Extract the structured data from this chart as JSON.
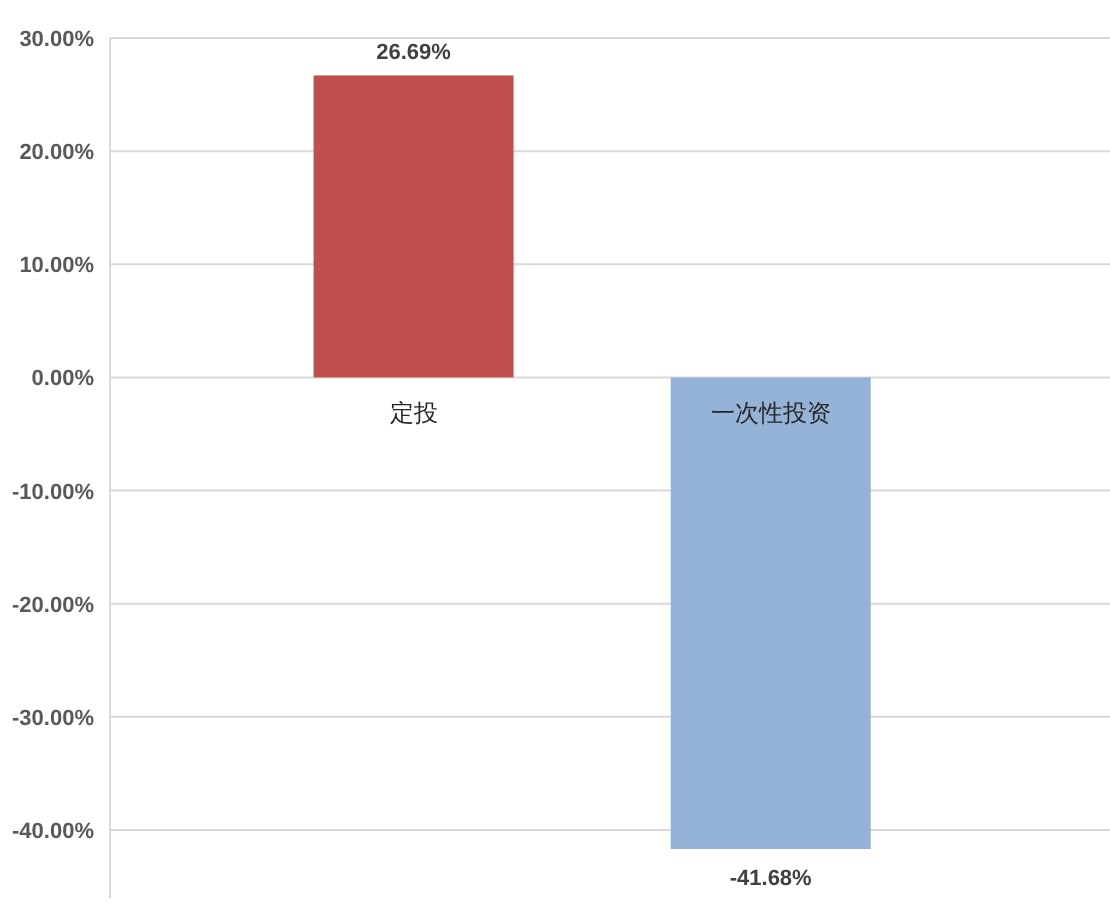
{
  "chart_data": {
    "type": "bar",
    "categories": [
      "定投",
      "一次性投资"
    ],
    "values": [
      26.69,
      -41.68
    ],
    "colors": [
      "#c0504d",
      "#95b3d7"
    ],
    "value_labels": [
      "26.69%",
      "-41.68%"
    ],
    "ylim": [
      -46,
      30
    ],
    "yticks": [
      {
        "value": 30,
        "label": "30.00%"
      },
      {
        "value": 20,
        "label": "20.00%"
      },
      {
        "value": 10,
        "label": "10.00%"
      },
      {
        "value": 0,
        "label": "0.00%"
      },
      {
        "value": -10,
        "label": "-10.00%"
      },
      {
        "value": -20,
        "label": "-20.00%"
      },
      {
        "value": -30,
        "label": "-30.00%"
      },
      {
        "value": -40,
        "label": "-40.00%"
      }
    ],
    "grid": "y"
  }
}
